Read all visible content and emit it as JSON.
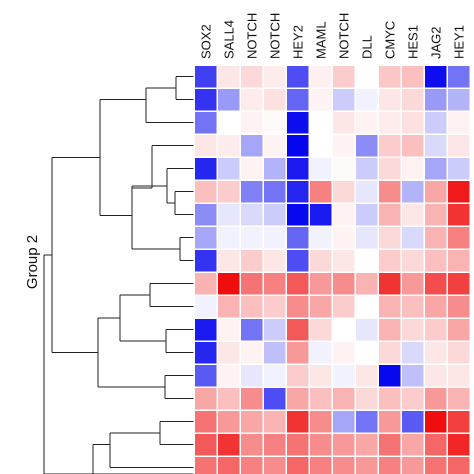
{
  "chart_data": {
    "type": "heatmap",
    "title": "",
    "group_label": "Group 2",
    "columns": [
      "SOX2",
      "SALL4",
      "NOTCH",
      "NOTCH",
      "HEY2",
      "MAML",
      "NOTCH",
      "DLL",
      "CMYC",
      "HES1",
      "JAG2",
      "HEY1"
    ],
    "value_range": [
      -1,
      1
    ],
    "colors": {
      "low": "#0000ee",
      "mid": "#ffffff",
      "high": "#ee0000",
      "grid": "#ffffff",
      "tree": "#222222"
    },
    "values": [
      [
        -0.75,
        0.1,
        0.15,
        0.08,
        -0.7,
        0.06,
        0.2,
        0.0,
        0.22,
        0.25,
        -0.95,
        -0.55
      ],
      [
        -0.8,
        -0.4,
        0.08,
        0.12,
        -0.6,
        0.05,
        -0.2,
        -0.05,
        0.1,
        0.15,
        -0.4,
        -0.3
      ],
      [
        -0.55,
        0.0,
        0.05,
        0.02,
        -0.95,
        0.0,
        0.1,
        0.05,
        0.08,
        0.12,
        -0.2,
        0.05
      ],
      [
        0.1,
        0.08,
        -0.35,
        0.05,
        -0.98,
        0.0,
        0.05,
        -0.45,
        0.2,
        0.25,
        -0.15,
        0.1
      ],
      [
        -0.85,
        -0.2,
        0.05,
        -0.3,
        -0.9,
        -0.05,
        0.02,
        -0.2,
        0.15,
        0.05,
        -0.35,
        -0.2
      ],
      [
        0.25,
        0.2,
        -0.5,
        -0.55,
        -0.85,
        0.5,
        0.15,
        -0.1,
        0.45,
        -0.3,
        0.35,
        0.9
      ],
      [
        -0.45,
        -0.1,
        -0.15,
        -0.2,
        -0.97,
        -0.9,
        0.05,
        -0.2,
        0.3,
        0.1,
        0.3,
        0.8
      ],
      [
        -0.35,
        -0.05,
        -0.05,
        -0.05,
        -0.6,
        -0.05,
        0.05,
        -0.1,
        0.15,
        -0.15,
        0.3,
        0.5
      ],
      [
        -0.8,
        0.1,
        0.2,
        0.1,
        -0.7,
        0.15,
        0.1,
        0.0,
        0.2,
        0.15,
        0.25,
        0.3
      ],
      [
        0.3,
        0.95,
        0.55,
        0.5,
        0.65,
        0.4,
        0.45,
        0.3,
        0.8,
        0.4,
        0.7,
        0.75
      ],
      [
        -0.05,
        0.3,
        0.25,
        0.2,
        0.45,
        0.35,
        0.2,
        0.0,
        0.3,
        0.25,
        0.35,
        0.45
      ],
      [
        -0.9,
        0.05,
        -0.55,
        -0.2,
        0.65,
        0.15,
        0.0,
        -0.1,
        0.3,
        0.15,
        0.2,
        0.35
      ],
      [
        -0.85,
        0.1,
        0.05,
        -0.25,
        0.4,
        -0.05,
        0.05,
        0.0,
        0.15,
        -0.15,
        0.1,
        0.15
      ],
      [
        -0.65,
        0.05,
        -0.1,
        -0.05,
        0.2,
        0.1,
        -0.05,
        0.1,
        -0.97,
        -0.25,
        0.1,
        0.1
      ],
      [
        0.35,
        0.25,
        0.45,
        -0.7,
        0.35,
        0.25,
        0.3,
        0.15,
        0.25,
        0.2,
        0.4,
        0.3
      ],
      [
        0.55,
        0.4,
        0.35,
        0.3,
        0.8,
        0.45,
        -0.35,
        -0.55,
        0.4,
        -0.65,
        0.95,
        0.75
      ],
      [
        0.65,
        0.8,
        0.45,
        0.5,
        0.55,
        0.45,
        0.4,
        0.35,
        0.55,
        0.35,
        0.6,
        0.85
      ],
      [
        0.55,
        0.6,
        0.5,
        0.45,
        0.6,
        0.5,
        0.45,
        0.4,
        0.5,
        0.4,
        0.55,
        0.6
      ]
    ]
  }
}
